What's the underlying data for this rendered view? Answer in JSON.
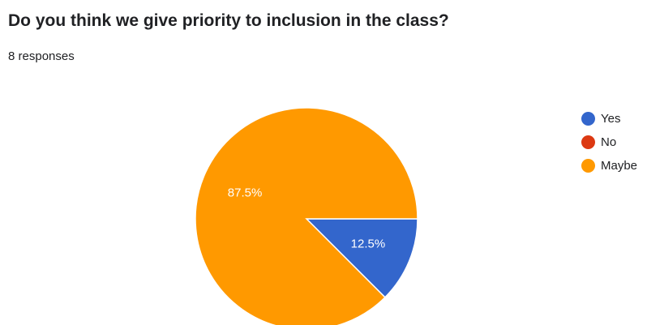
{
  "header": {
    "question": "Do you think we give priority to inclusion in the class?",
    "responses": "8 responses"
  },
  "chart_data": {
    "type": "pie",
    "title": "Do you think we give priority to inclusion in the class?",
    "total_responses": 8,
    "slices": [
      {
        "label": "Yes",
        "value": 1,
        "percent_label": "12.5%",
        "color": "#3366cc"
      },
      {
        "label": "No",
        "value": 0,
        "percent_label": "",
        "color": "#dc3912"
      },
      {
        "label": "Maybe",
        "value": 7,
        "percent_label": "87.5%",
        "color": "#ff9900"
      }
    ],
    "legend_position": "right"
  }
}
